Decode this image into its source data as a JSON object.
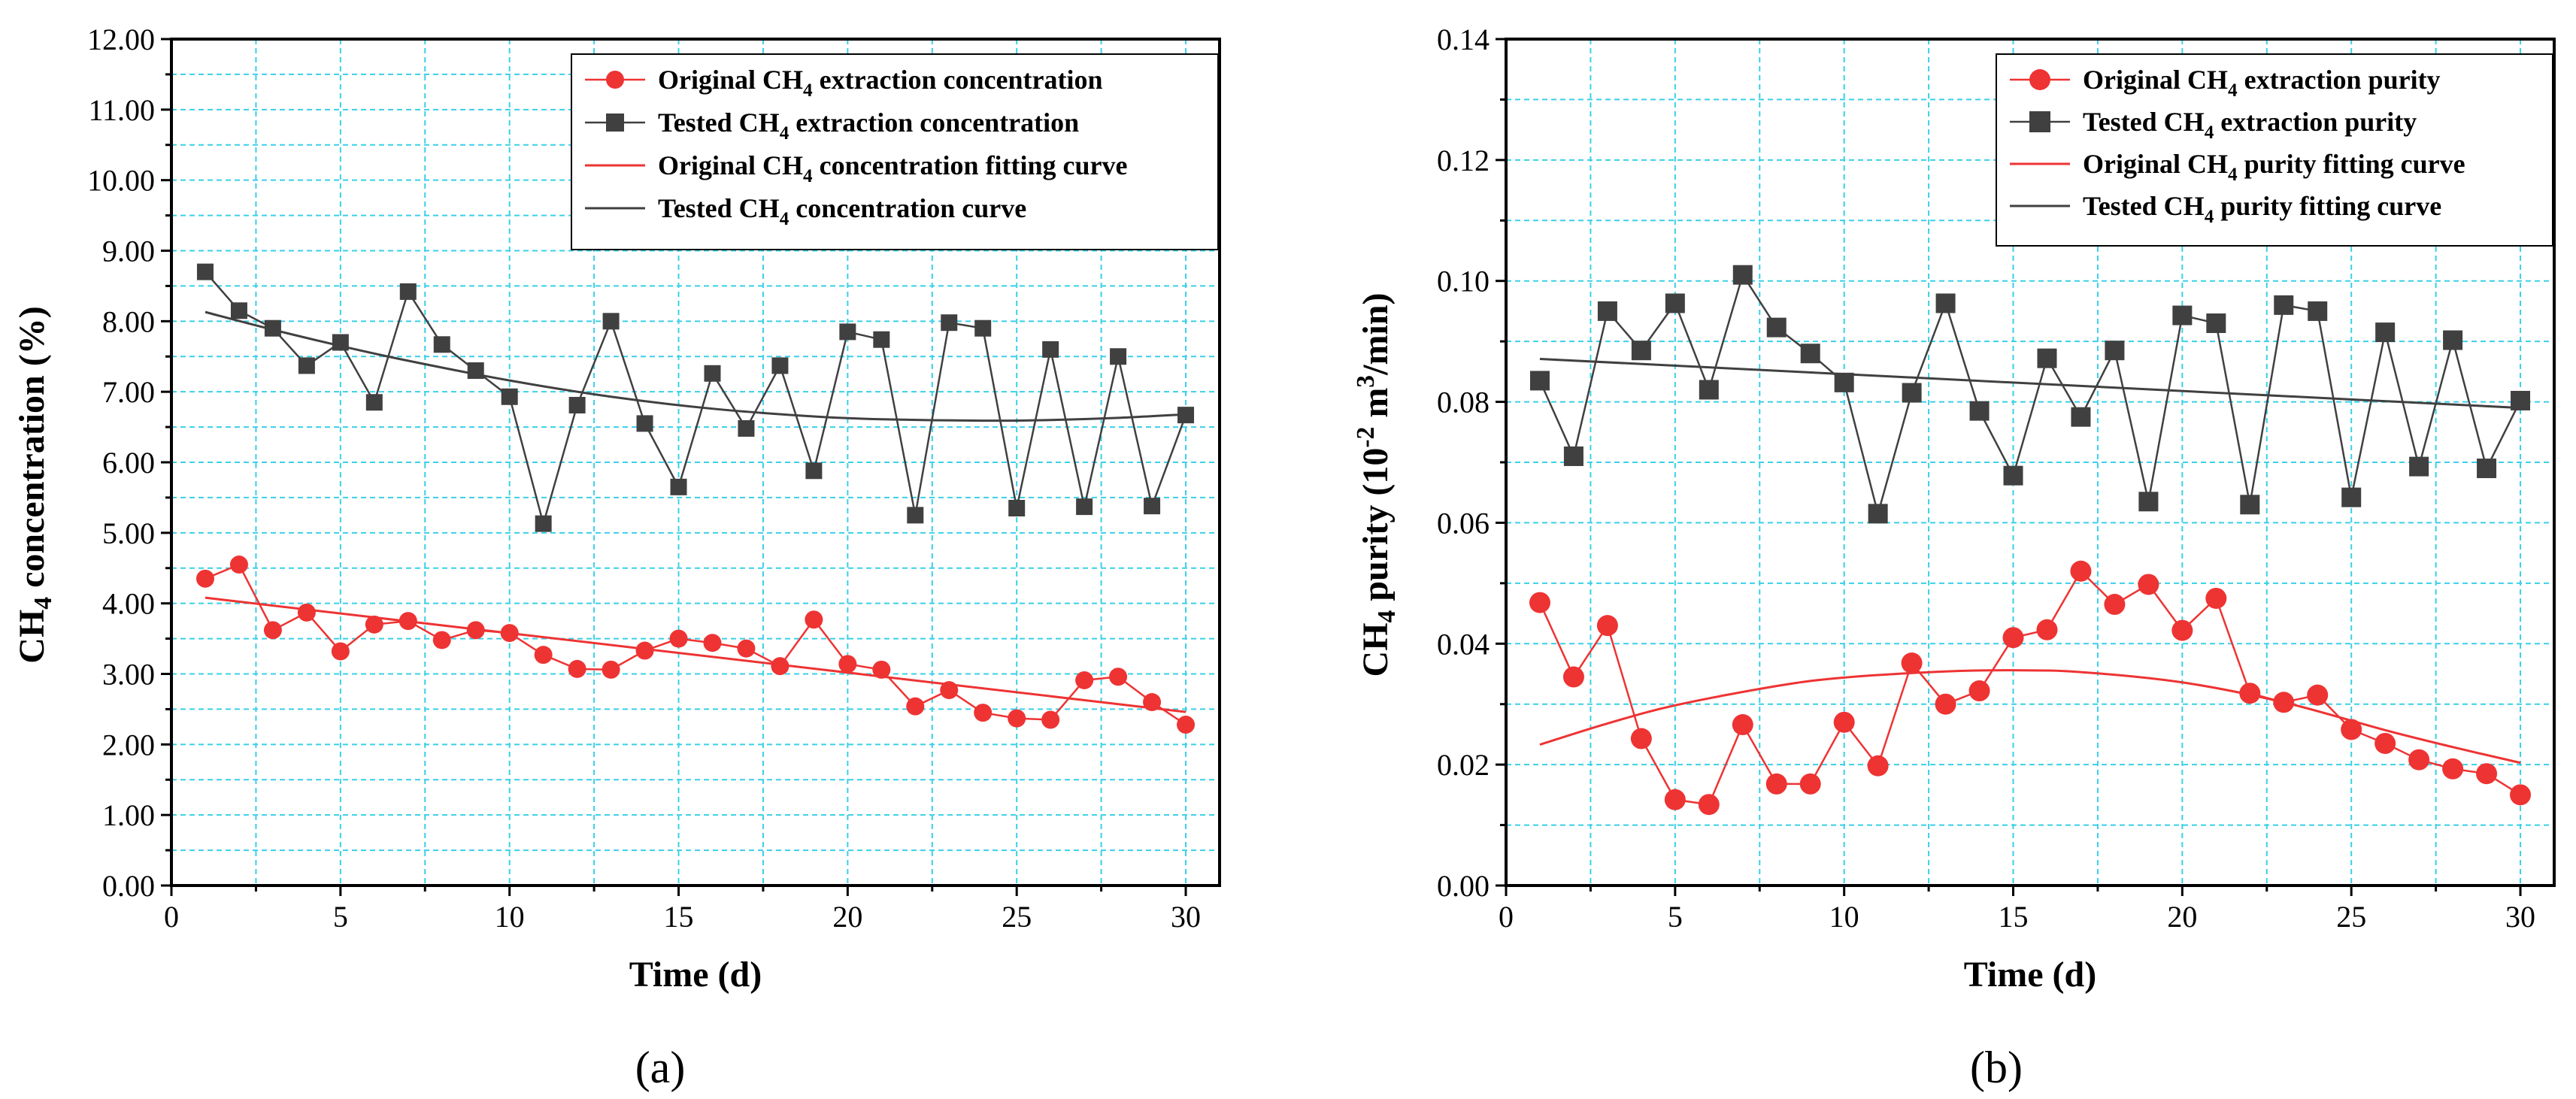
{
  "colors": {
    "original": "#ee3333",
    "tested": "#404040",
    "grid": "#3ad0e8",
    "axis": "#000000"
  },
  "chart_data": [
    {
      "type": "line",
      "panel_label": "(a)",
      "xlabel": "Time (d)",
      "ylabel": "CH₄ concentration (%)",
      "xlim": [
        0,
        31
      ],
      "ylim": [
        0,
        12
      ],
      "xticks": [
        "0",
        "5",
        "10",
        "15",
        "20",
        "25",
        "30"
      ],
      "yticks": [
        "0.00",
        "1.00",
        "2.00",
        "3.00",
        "4.00",
        "5.00",
        "6.00",
        "7.00",
        "8.00",
        "9.00",
        "10.00",
        "11.00",
        "12.00"
      ],
      "x": [
        1,
        2,
        3,
        4,
        5,
        6,
        7,
        8,
        9,
        10,
        11,
        12,
        13,
        14,
        15,
        16,
        17,
        18,
        19,
        20,
        21,
        22,
        23,
        24,
        25,
        26,
        27,
        28,
        29,
        30
      ],
      "series": [
        {
          "name": "Original CH₄ extraction concentration",
          "role": "original_points",
          "values": [
            4.35,
            4.55,
            3.62,
            3.87,
            3.32,
            3.7,
            3.75,
            3.48,
            3.62,
            3.58,
            3.27,
            3.07,
            3.06,
            3.33,
            3.5,
            3.44,
            3.36,
            3.11,
            3.77,
            3.14,
            3.06,
            2.54,
            2.77,
            2.45,
            2.37,
            2.35,
            2.91,
            2.96,
            2.6,
            2.28
          ]
        },
        {
          "name": "Tested CH₄ extraction concentration",
          "role": "tested_points",
          "values": [
            8.7,
            8.15,
            7.9,
            7.37,
            7.7,
            6.85,
            8.42,
            7.67,
            7.3,
            6.93,
            5.13,
            6.81,
            8.0,
            6.55,
            5.65,
            7.26,
            6.48,
            7.37,
            5.88,
            7.85,
            7.74,
            5.25,
            7.98,
            7.9,
            5.35,
            7.6,
            5.37,
            7.5,
            5.38,
            6.67
          ]
        },
        {
          "name": "Original CH₄ concentration fitting curve",
          "role": "original_fit",
          "x": [
            1,
            30
          ],
          "values": [
            4.08,
            2.46
          ]
        },
        {
          "name": "Tested CH₄ concentration curve",
          "role": "tested_fit",
          "x": [
            1,
            3,
            5,
            7,
            10,
            13,
            16,
            19,
            21,
            24,
            26,
            28,
            30
          ],
          "values": [
            8.13,
            7.88,
            7.65,
            7.44,
            7.16,
            6.93,
            6.76,
            6.65,
            6.61,
            6.59,
            6.6,
            6.63,
            6.68
          ]
        }
      ]
    },
    {
      "type": "line",
      "panel_label": "(b)",
      "xlabel": "Time (d)",
      "ylabel": "CH₄ purity (10⁻² m³/min)",
      "xlim": [
        0,
        31
      ],
      "ylim": [
        0,
        0.14
      ],
      "xticks": [
        "0",
        "5",
        "10",
        "15",
        "20",
        "25",
        "30"
      ],
      "yticks": [
        "0.00",
        "0.02",
        "0.04",
        "0.06",
        "0.08",
        "0.10",
        "0.12",
        "0.14"
      ],
      "x": [
        1,
        2,
        3,
        4,
        5,
        6,
        7,
        8,
        9,
        10,
        11,
        12,
        13,
        14,
        15,
        16,
        17,
        18,
        19,
        20,
        21,
        22,
        23,
        24,
        25,
        26,
        27,
        28,
        29,
        30
      ],
      "series": [
        {
          "name": "Original CH₄ extraction purity",
          "role": "original_points",
          "values": [
            0.0468,
            0.0345,
            0.043,
            0.0243,
            0.0142,
            0.0134,
            0.0266,
            0.0168,
            0.0168,
            0.027,
            0.0198,
            0.0368,
            0.03,
            0.0322,
            0.041,
            0.0423,
            0.052,
            0.0465,
            0.0498,
            0.0422,
            0.0475,
            0.0318,
            0.0303,
            0.0315,
            0.0258,
            0.0235,
            0.0208,
            0.0193,
            0.0185,
            0.015
          ]
        },
        {
          "name": "Tested CH₄ extraction purity",
          "role": "tested_points",
          "values": [
            0.0835,
            0.071,
            0.095,
            0.0885,
            0.0963,
            0.082,
            0.101,
            0.0923,
            0.088,
            0.0832,
            0.0615,
            0.0815,
            0.0963,
            0.0785,
            0.0678,
            0.0872,
            0.0775,
            0.0885,
            0.0635,
            0.0943,
            0.093,
            0.063,
            0.096,
            0.095,
            0.0642,
            0.0915,
            0.0693,
            0.0902,
            0.069,
            0.0802
          ]
        },
        {
          "name": "Original CH₄  purity fitting curve",
          "role": "original_fit",
          "x": [
            1,
            3,
            5,
            8,
            10,
            13,
            15,
            17,
            20,
            23,
            26,
            28,
            30
          ],
          "values": [
            0.0233,
            0.0268,
            0.0298,
            0.033,
            0.0344,
            0.0354,
            0.0356,
            0.0353,
            0.0336,
            0.0303,
            0.0257,
            0.0229,
            0.0203
          ]
        },
        {
          "name": "Tested CH₄  purity fitting curve",
          "role": "tested_fit",
          "x": [
            1,
            30
          ],
          "values": [
            0.0871,
            0.079
          ]
        }
      ]
    }
  ]
}
